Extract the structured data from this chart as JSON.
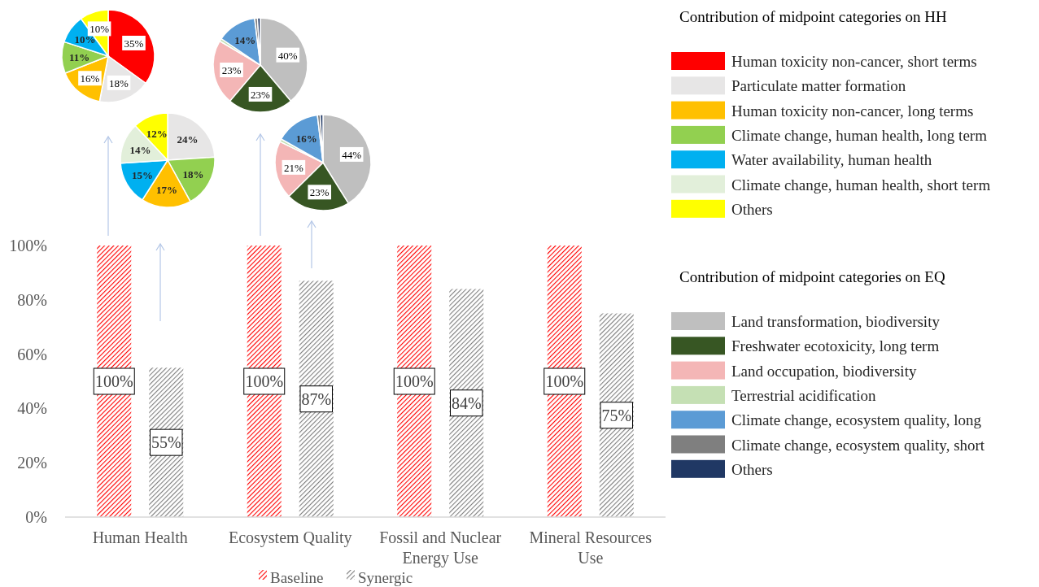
{
  "chart_data": [
    {
      "type": "bar",
      "categories": [
        "Human Health",
        "Ecosystem Quality",
        "Fossil and Nuclear Energy Use",
        "Mineral Resources Use"
      ],
      "series": [
        {
          "name": "Baseline",
          "color": "#ff0000",
          "values": [
            100,
            100,
            100,
            100
          ],
          "value_labels": [
            "100%",
            "100%",
            "100%",
            "100%"
          ]
        },
        {
          "name": "Synergic",
          "color": "#7f7f7f",
          "values": [
            55,
            87,
            84,
            75
          ],
          "value_labels": [
            "55%",
            "87%",
            "84%",
            "75%"
          ]
        }
      ],
      "ylim": [
        0,
        100
      ],
      "yticks": [
        {
          "value": 0,
          "label": "0%"
        },
        {
          "value": 20,
          "label": "20%"
        },
        {
          "value": 40,
          "label": "40%"
        },
        {
          "value": 60,
          "label": "60%"
        },
        {
          "value": 80,
          "label": "80%"
        },
        {
          "value": 100,
          "label": "100%"
        }
      ],
      "grid": false,
      "legend": "bottom"
    },
    {
      "type": "pie",
      "legend_title": "Contribution of midpoint categories on HH",
      "legend": "right",
      "categories": [
        "Human toxicity non-cancer, short terms",
        "Particulate matter formation",
        "Human toxicity non-cancer, long terms",
        "Climate change, human health, long term",
        "Water availability, human health",
        "Climate change, human health, short term",
        "Others"
      ],
      "values": [
        35,
        18,
        16,
        11,
        10,
        0,
        10
      ],
      "colors": [
        "#ff0000",
        "#e7e6e6",
        "#ffc000",
        "#92d050",
        "#00b0f0",
        "#e2efda",
        "#ffff00"
      ],
      "value_labels": [
        "35%",
        "18%",
        "16%",
        "11%",
        "10%",
        null,
        "10%"
      ]
    },
    {
      "type": "pie",
      "categories": [
        null,
        null,
        null,
        null,
        null,
        null
      ],
      "values": [
        24,
        18,
        17,
        15,
        14,
        12
      ],
      "colors": [
        "#e7e6e6",
        "#92d050",
        "#ffc000",
        "#00b0f0",
        "#e2efda",
        "#ffff00"
      ],
      "value_labels": [
        "24%",
        "18%",
        "17%",
        "15%",
        "14%",
        "12%"
      ]
    },
    {
      "type": "pie",
      "legend_title": "Contribution of midpoint categories on EQ",
      "legend": "right",
      "categories": [
        "Land transformation, biodiversity",
        "Freshwater ecotoxicity, long term",
        "Land occupation, biodiversity",
        "Terrestrial acidification",
        "Climate change, ecosystem quality, long",
        "Climate change, ecosystem quality, short",
        "Others"
      ],
      "values": [
        40,
        23,
        23,
        1,
        14,
        1,
        1
      ],
      "colors": [
        "#bfbfbf",
        "#375623",
        "#f4b6b6",
        "#c5e0b4",
        "#5b9bd5",
        "#7f7f7f",
        "#203864"
      ],
      "value_labels": [
        "40%",
        "23%",
        "23%",
        null,
        "14%",
        null,
        null
      ]
    },
    {
      "type": "pie",
      "categories": [
        null,
        null,
        null,
        null,
        null,
        null,
        null
      ],
      "values": [
        44,
        23,
        21,
        1,
        16,
        1,
        1
      ],
      "colors": [
        "#bfbfbf",
        "#375623",
        "#f4b6b6",
        "#c5e0b4",
        "#5b9bd5",
        "#7f7f7f",
        "#203864"
      ],
      "value_labels": [
        "44%",
        "23%",
        "21%",
        null,
        "16%",
        null,
        null
      ]
    }
  ]
}
